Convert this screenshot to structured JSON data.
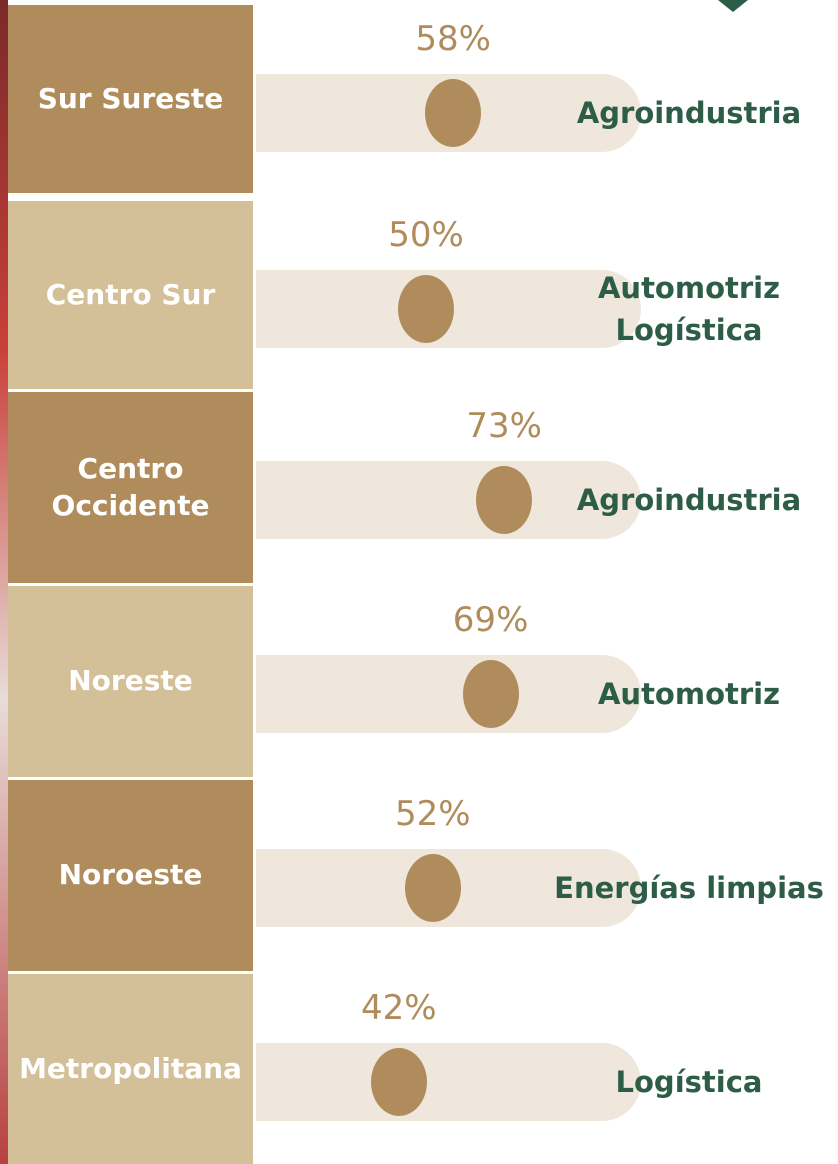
{
  "chart_data": {
    "type": "dot",
    "categories": [
      "Sur Sureste",
      "Centro Sur",
      "Centro Occidente",
      "Noreste",
      "Noroeste",
      "Metropolitana"
    ],
    "values": [
      58,
      50,
      73,
      69,
      52,
      42
    ],
    "value_labels": [
      "58%",
      "50%",
      "73%",
      "69%",
      "52%",
      "42%"
    ],
    "sectors": [
      [
        "Agroindustria"
      ],
      [
        "Automotriz",
        "Logística"
      ],
      [
        "Agroindustria"
      ],
      [
        "Automotriz"
      ],
      [
        "Energías limpias"
      ],
      [
        "Logística"
      ]
    ],
    "color": "#b08c5c"
  }
}
